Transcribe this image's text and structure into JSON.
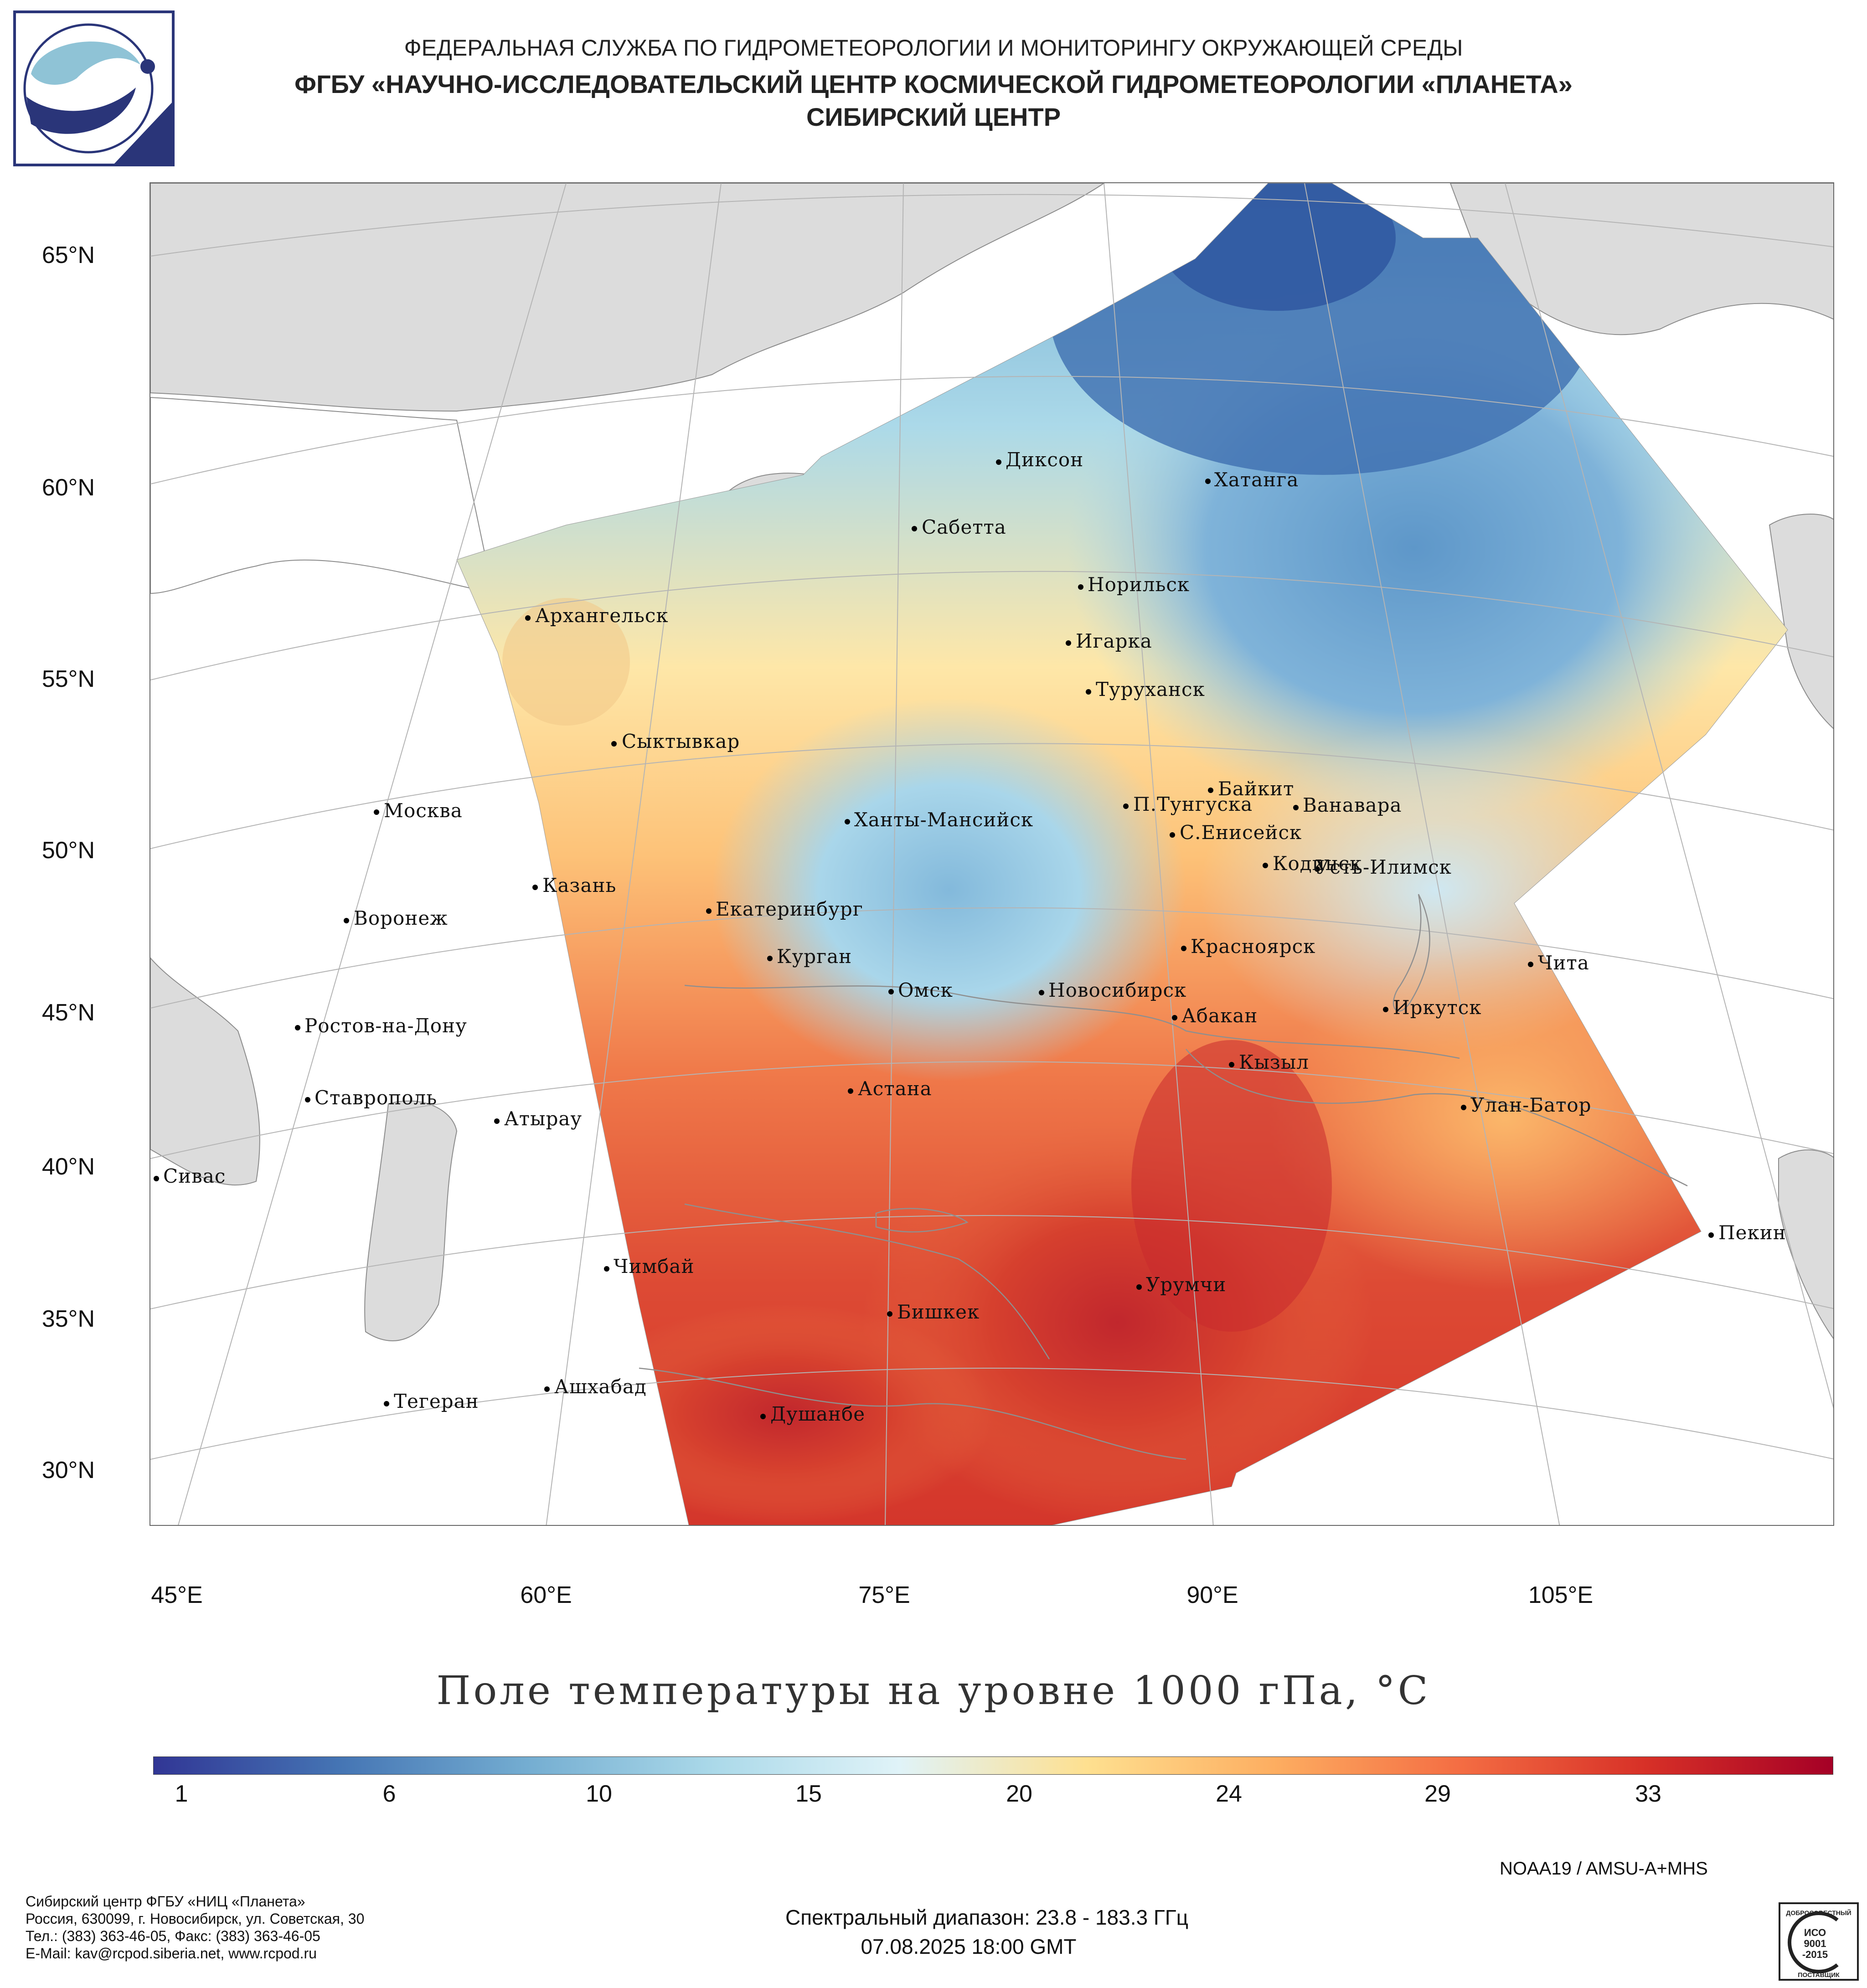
{
  "header": {
    "agency": "ФЕДЕРАЛЬНАЯ СЛУЖБА ПО ГИДРОМЕТЕОРОЛОГИИ И МОНИТОРИНГУ ОКРУЖАЮЩЕЙ СРЕДЫ",
    "organization": "ФГБУ «НАУЧНО-ИССЛЕДОВАТЕЛЬСКИЙ ЦЕНТР КОСМИЧЕСКОЙ ГИДРОМЕТЕОРОЛОГИИ «ПЛАНЕТА»",
    "center": "СИБИРСКИЙ ЦЕНТР"
  },
  "map": {
    "title": "Поле температуры на уровне 1000 гПа, °C",
    "lat_labels": [
      "65°N",
      "60°N",
      "55°N",
      "50°N",
      "45°N",
      "40°N",
      "35°N",
      "30°N"
    ],
    "lon_labels": [
      "45°E",
      "60°E",
      "75°E",
      "90°E",
      "105°E"
    ],
    "cities": [
      "Диксон",
      "Хатанга",
      "Сабетта",
      "Норильск",
      "Архангельск",
      "Игарка",
      "Туруханск",
      "Сыктывкар",
      "Байкит",
      "П.Тунгуска",
      "Ванавара",
      "Москва",
      "Ханты-Мансийск",
      "С.Енисейск",
      "Кодинск",
      "Усть-Илимск",
      "Казань",
      "Екатеринбург",
      "Воронеж",
      "Красноярск",
      "Курган",
      "Чита",
      "Омск",
      "Новосибирск",
      "Ростов-на-Дону",
      "Абакан",
      "Иркутск",
      "Кызыл",
      "Астана",
      "Ставрополь",
      "Улан-Батор",
      "Атырау",
      "Сивас",
      "Пекин",
      "Чимбай",
      "Урумчи",
      "Бишкек",
      "Ашхабад",
      "Тегеран",
      "Душанбе"
    ],
    "colors": {
      "land_outside": "#dcdcdc",
      "ocean_outside": "#ffffff",
      "borders": "#9a9a9a",
      "graticule": "#b4b4b4"
    }
  },
  "colorbar": {
    "tick_labels": [
      "1",
      "6",
      "10",
      "15",
      "20",
      "24",
      "29",
      "33"
    ],
    "colors": [
      "#313695",
      "#4575b4",
      "#74add1",
      "#abd9e9",
      "#e0f3f8",
      "#fee090",
      "#fdae61",
      "#f46d43",
      "#d73027",
      "#a50026"
    ]
  },
  "meta": {
    "sensor": "NOAA19 / AMSU-A+MHS",
    "spectral_range": "Спектральный диапазон: 23.8 - 183.3 ГГц",
    "datetime": "07.08.2025 18:00 GMT"
  },
  "footer": {
    "line1": "Сибирский центр ФГБУ «НИЦ «Планета»",
    "line2": "Россия, 630099, г. Новосибирск, ул. Советская, 30",
    "line3": "Тел.: (383) 363-46-05, Факс: (383) 363-46-05",
    "line4": "E-Mail: kav@rcpod.siberia.net, www.rcpod.ru"
  },
  "iso_badge": {
    "top": "ДОБРОСОВЕСТНЫЙ",
    "label1": "ИСО",
    "label2": "9001",
    "label3": "-2015",
    "bottom": "ПОСТАВЩИК"
  }
}
